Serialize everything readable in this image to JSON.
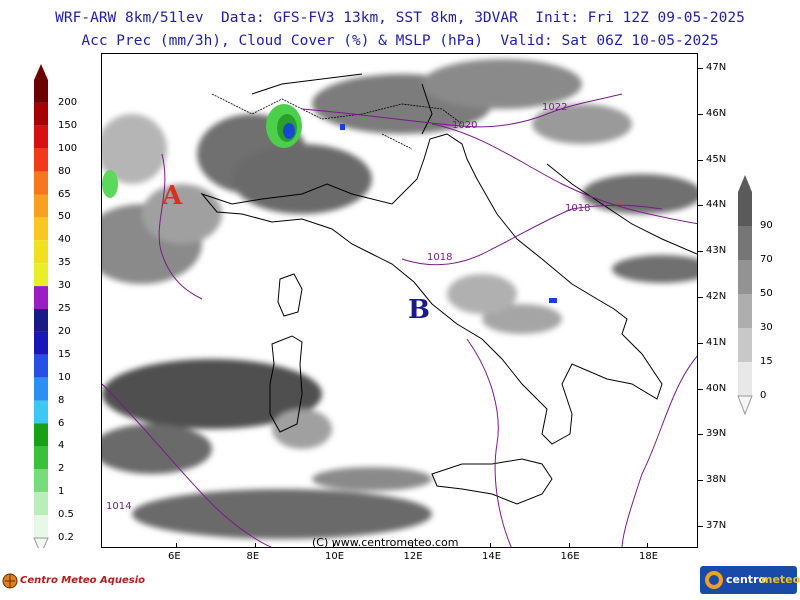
{
  "header": {
    "line1": "WRF-ARW 8km/51lev  Data: GFS-FV3 13km, SST 8km, 3DVAR  Init: Fri 12Z 09-05-2025",
    "line2": "Acc Prec (mm/3h), Cloud Cover (%) & MSLP (hPa)  Valid: Sat 06Z 10-05-2025"
  },
  "precip_legend": {
    "labels": [
      "200",
      "150",
      "100",
      "80",
      "65",
      "50",
      "40",
      "35",
      "30",
      "25",
      "20",
      "15",
      "10",
      "8",
      "6",
      "4",
      "2",
      "1",
      "0.5",
      "0.2"
    ],
    "colors": [
      "#6b0000",
      "#a80000",
      "#d81010",
      "#f03a1a",
      "#f4781e",
      "#f8a020",
      "#f8c820",
      "#f0e020",
      "#e8ef28",
      "#9a1fc0",
      "#1a1a86",
      "#1818b8",
      "#2450e8",
      "#2c90f2",
      "#3cc8f0",
      "#18a018",
      "#3cc03c",
      "#78dc78",
      "#b8eeb8",
      "#e6f8e6"
    ]
  },
  "cloud_legend": {
    "labels": [
      "90",
      "70",
      "50",
      "30",
      "15",
      "0"
    ],
    "colors": [
      "#5a5a5a",
      "#767676",
      "#939393",
      "#aeaeae",
      "#c8c8c8",
      "#e8e8e8"
    ]
  },
  "map": {
    "lat_labels": [
      "47N",
      "46N",
      "45N",
      "44N",
      "43N",
      "42N",
      "41N",
      "40N",
      "39N",
      "38N",
      "37N"
    ],
    "lon_labels": [
      "6E",
      "8E",
      "10E",
      "12E",
      "14E",
      "16E",
      "18E"
    ],
    "high_label": "A",
    "low_label": "B",
    "isobars": [
      "1022",
      "1020",
      "1018",
      "1018",
      "1014"
    ],
    "watermark": "(C) www.centrometeo.com"
  },
  "footer": {
    "left_brand": "Centro Meteo Aquesio",
    "right_brand_a": "centro",
    "right_brand_b": "meteo"
  }
}
